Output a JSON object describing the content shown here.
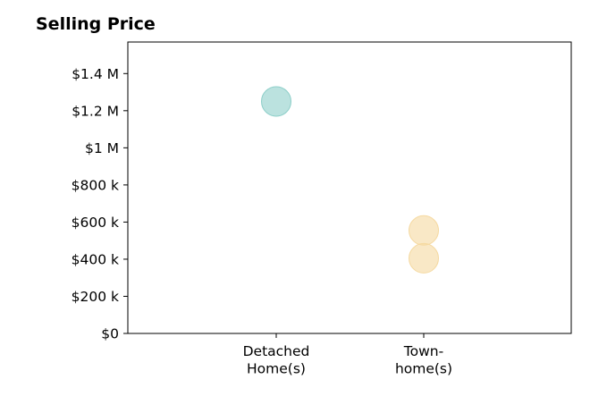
{
  "chart_data": {
    "type": "scatter",
    "title": "Selling Price",
    "categories": [
      "Detached Home(s)",
      "Town-home(s)"
    ],
    "category_tick_lines": [
      [
        "Detached",
        "Home(s)"
      ],
      [
        "Town-",
        "home(s)"
      ]
    ],
    "y_ticks": [
      {
        "value": 0,
        "label": "$0"
      },
      {
        "value": 200000,
        "label": "$200 k"
      },
      {
        "value": 400000,
        "label": "$400 k"
      },
      {
        "value": 600000,
        "label": "$600 k"
      },
      {
        "value": 800000,
        "label": "$800 k"
      },
      {
        "value": 1000000,
        "label": "$1 M"
      },
      {
        "value": 1200000,
        "label": "$1.2 M"
      },
      {
        "value": 1400000,
        "label": "$1.4 M"
      }
    ],
    "ylim": [
      0,
      1570000
    ],
    "grid": false,
    "series": [
      {
        "category": "Detached Home(s)",
        "values": [
          1250000
        ],
        "color": "#8ecfc9"
      },
      {
        "category": "Town-home(s)",
        "values": [
          555000,
          405000
        ],
        "color": "#f5d9a0"
      }
    ]
  }
}
